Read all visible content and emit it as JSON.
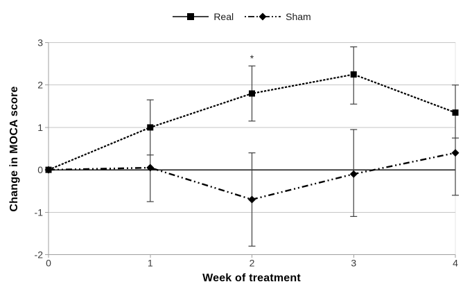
{
  "chart_data": {
    "type": "line",
    "title": "",
    "xlabel": "Week of treatment",
    "ylabel": "Change in MOCA score",
    "x": [
      0,
      1,
      2,
      3,
      4
    ],
    "xlim": [
      0,
      4
    ],
    "ylim": [
      -2,
      3
    ],
    "xticks": [
      0,
      1,
      2,
      3,
      4
    ],
    "yticks": [
      3,
      2,
      1,
      0,
      -1,
      -2
    ],
    "grid": "horizontal gridlines on",
    "legend_position": "top-center",
    "zero_line_at": 0,
    "series": [
      {
        "name": "Real",
        "marker": "square",
        "line_style": "solid",
        "values": [
          0,
          1.0,
          1.8,
          2.25,
          1.35
        ]
      },
      {
        "name": "Sham",
        "marker": "diamond",
        "line_style": "dash-dot",
        "values": [
          0,
          0.05,
          -0.7,
          -0.1,
          0.4
        ]
      }
    ],
    "error_bars": [
      {
        "x": 1,
        "from": -0.75,
        "to": 1.65,
        "extra_caps": [
          0.35
        ]
      },
      {
        "x": 2,
        "from": 1.15,
        "to": 2.45
      },
      {
        "x": 2,
        "from": -1.8,
        "to": 0.4
      },
      {
        "x": 3,
        "from": 1.55,
        "to": 2.9
      },
      {
        "x": 3,
        "from": -1.1,
        "to": 0.95
      },
      {
        "x": 4,
        "from": -0.6,
        "to": 2.0,
        "extra_caps": [
          0.75
        ]
      }
    ],
    "annotations": [
      {
        "text": "*",
        "x": 2,
        "y": 2.62
      }
    ]
  },
  "colors": {
    "series": "#000000",
    "grid": "#c6c6c6",
    "axis": "#9f9f9f",
    "border": "#e4e4e4",
    "error_bar": "#3f3f3f",
    "tick_label": "#3a3a3a",
    "zero_line": "#141414",
    "annotation": "#2a2a2a",
    "background": "#ffffff"
  }
}
